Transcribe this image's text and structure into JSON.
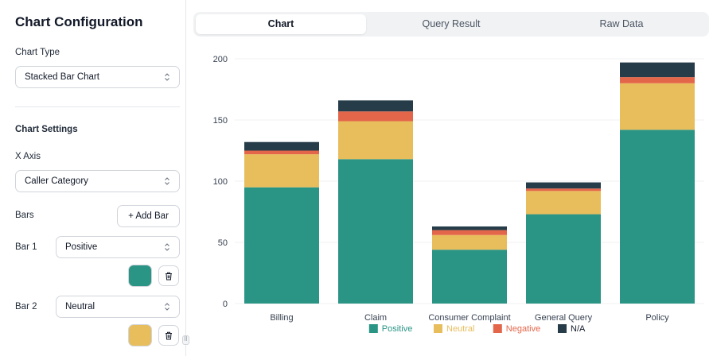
{
  "panel": {
    "title": "Chart Configuration",
    "chart_type_label": "Chart Type",
    "chart_type_value": "Stacked Bar Chart",
    "settings_title": "Chart Settings",
    "x_axis_label": "X Axis",
    "x_axis_value": "Caller Category",
    "bars_label": "Bars",
    "add_bar_label": "+ Add Bar",
    "bar_rows": [
      {
        "label": "Bar 1",
        "value": "Positive",
        "color": "#2a9485"
      },
      {
        "label": "Bar 2",
        "value": "Neutral",
        "color": "#e8bd5c"
      }
    ]
  },
  "tabs": [
    {
      "label": "Chart",
      "active": true
    },
    {
      "label": "Query Result",
      "active": false
    },
    {
      "label": "Raw Data",
      "active": false
    }
  ],
  "chart_data": {
    "type": "bar",
    "stacked": true,
    "categories": [
      "Billing",
      "Claim",
      "Consumer Complaint",
      "General Query",
      "Policy"
    ],
    "series": [
      {
        "name": "Positive",
        "color": "#2a9485",
        "values": [
          95,
          118,
          44,
          73,
          142
        ]
      },
      {
        "name": "Neutral",
        "color": "#e8bd5c",
        "values": [
          27,
          31,
          12,
          19,
          38
        ]
      },
      {
        "name": "Negative",
        "color": "#e4664a",
        "values": [
          3,
          8,
          4,
          2,
          5
        ]
      },
      {
        "name": "N/A",
        "color": "#263c48",
        "values": [
          7,
          9,
          3,
          5,
          12
        ]
      }
    ],
    "yticks": [
      0,
      50,
      100,
      150,
      200
    ],
    "ylim": [
      0,
      200
    ],
    "grid": true,
    "legend_position": "bottom"
  }
}
